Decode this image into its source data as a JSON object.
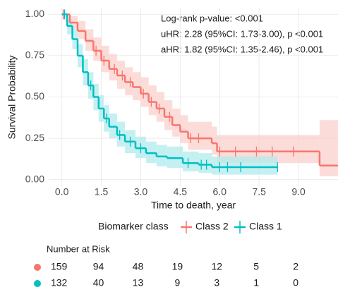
{
  "chart_data": {
    "type": "km",
    "x_label": "Time to death, year",
    "y_label": "Survival Probability",
    "annotations": [
      "Log-rank p-value: <0.001",
      "uHR: 2.28 (95%CI: 1.73-3.00), p <0.001",
      "aHR: 1.82 (95%CI: 1.35-2.46), p <0.001"
    ],
    "legend_title": "Biomarker class",
    "grid": true,
    "xlim": [
      -0.5,
      10.5
    ],
    "ylim": [
      -0.04,
      1.04
    ],
    "xticks": [
      {
        "value": 0,
        "label": "0.0"
      },
      1.5,
      {
        "value": 3,
        "label": "3.0"
      },
      4.5,
      {
        "value": 6,
        "label": "6.0"
      },
      7.5,
      {
        "value": 9,
        "label": "9.0"
      }
    ],
    "yticks": [
      {
        "value": 0,
        "label": "0.00"
      },
      0.25,
      {
        "value": 0.5,
        "label": "0.50"
      },
      0.75,
      {
        "value": 1,
        "label": "1.00"
      }
    ],
    "series": [
      {
        "name": "Class 2",
        "color": "#f8766d",
        "band_color": "#fbd0cc",
        "x": [
          0,
          0.3,
          0.6,
          0.9,
          1.2,
          1.5,
          1.8,
          2.1,
          2.4,
          2.7,
          3.0,
          3.3,
          3.6,
          3.9,
          4.2,
          4.5,
          4.8,
          5.7,
          5.9,
          9.8,
          10.5
        ],
        "values": [
          1,
          0.95,
          0.9,
          0.84,
          0.78,
          0.72,
          0.67,
          0.63,
          0.59,
          0.56,
          0.52,
          0.47,
          0.43,
          0.38,
          0.33,
          0.29,
          0.25,
          0.22,
          0.17,
          0.085,
          0.085
        ],
        "ci_lower": [
          1,
          0.91,
          0.85,
          0.78,
          0.72,
          0.65,
          0.6,
          0.55,
          0.51,
          0.48,
          0.44,
          0.39,
          0.35,
          0.3,
          0.26,
          0.22,
          0.18,
          0.15,
          0.1,
          0.02,
          0.02
        ],
        "ci_upper": [
          1,
          0.99,
          0.96,
          0.91,
          0.86,
          0.81,
          0.76,
          0.72,
          0.68,
          0.65,
          0.62,
          0.57,
          0.53,
          0.48,
          0.43,
          0.39,
          0.35,
          0.32,
          0.27,
          0.36,
          0.36
        ],
        "censor_x": [
          0.05,
          1.3,
          1.6,
          2.0,
          2.3,
          2.6,
          3.1,
          3.4,
          3.7,
          4.1,
          4.9,
          5.2,
          6.0,
          6.6,
          7.4,
          8.0,
          8.8
        ],
        "censor_y": [
          1,
          0.78,
          0.72,
          0.67,
          0.63,
          0.59,
          0.52,
          0.47,
          0.43,
          0.38,
          0.25,
          0.25,
          0.17,
          0.17,
          0.17,
          0.17,
          0.17
        ]
      },
      {
        "name": "Class 1",
        "color": "#00bfc4",
        "band_color": "#b2ebec",
        "x": [
          0,
          0.2,
          0.4,
          0.6,
          0.8,
          1.0,
          1.2,
          1.4,
          1.6,
          1.8,
          2.1,
          2.4,
          2.8,
          3.2,
          3.6,
          4.0,
          4.6,
          5.2,
          5.7,
          8.2
        ],
        "values": [
          1,
          0.93,
          0.85,
          0.75,
          0.65,
          0.57,
          0.5,
          0.43,
          0.37,
          0.32,
          0.27,
          0.23,
          0.19,
          0.16,
          0.14,
          0.13,
          0.1,
          0.09,
          0.075,
          0.075
        ],
        "ci_lower": [
          1,
          0.88,
          0.79,
          0.68,
          0.57,
          0.49,
          0.42,
          0.35,
          0.29,
          0.25,
          0.2,
          0.16,
          0.13,
          0.1,
          0.08,
          0.07,
          0.05,
          0.04,
          0.03,
          0.03
        ],
        "ci_upper": [
          1,
          0.97,
          0.91,
          0.82,
          0.73,
          0.65,
          0.58,
          0.51,
          0.45,
          0.4,
          0.35,
          0.3,
          0.26,
          0.23,
          0.21,
          0.2,
          0.17,
          0.16,
          0.14,
          0.14
        ],
        "censor_x": [
          0.1,
          1.1,
          1.7,
          2.2,
          2.6,
          3.0,
          4.8,
          5.3,
          5.5,
          6.0,
          6.3,
          6.8,
          8.2
        ],
        "censor_y": [
          1,
          0.57,
          0.37,
          0.27,
          0.23,
          0.19,
          0.1,
          0.09,
          0.09,
          0.075,
          0.075,
          0.075,
          0.075
        ]
      }
    ],
    "risk_table": {
      "title": "Number at Risk",
      "rows": [
        [
          159,
          94,
          48,
          19,
          12,
          5,
          2
        ],
        [
          132,
          40,
          13,
          9,
          3,
          1,
          0
        ]
      ]
    }
  }
}
